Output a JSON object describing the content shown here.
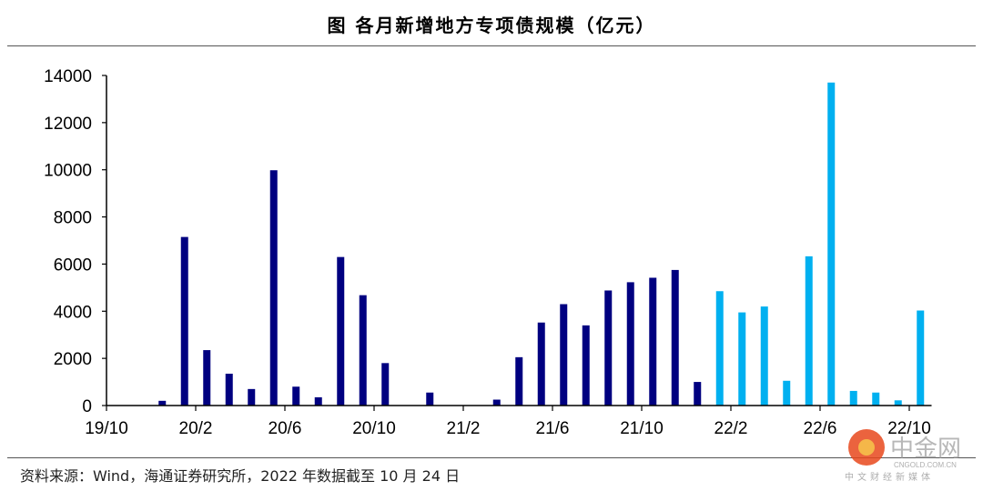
{
  "title": "图  各月新增地方专项债规模（亿元）",
  "source": "资料来源：Wind，海通证券研究所，2022 年数据截至 10 月 24 日",
  "watermark": {
    "name": "中金网",
    "url_text": "CNGOLD.COM.CN",
    "tagline": "中文财经新媒体"
  },
  "chart_data": {
    "type": "bar",
    "title": "图  各月新增地方专项债规模（亿元）",
    "xlabel": "",
    "ylabel": "",
    "ylim": [
      0,
      14000
    ],
    "yticks": [
      0,
      2000,
      4000,
      6000,
      8000,
      10000,
      12000,
      14000
    ],
    "xtick_labels": [
      "19/10",
      "20/2",
      "20/6",
      "20/10",
      "21/2",
      "21/6",
      "21/10",
      "22/2",
      "22/6",
      "22/10"
    ],
    "grid": false,
    "colors": {
      "2019-2021": "#000080",
      "2022": "#00B0F0"
    },
    "categories": [
      "19/10",
      "19/11",
      "19/12",
      "20/1",
      "20/2",
      "20/3",
      "20/4",
      "20/5",
      "20/6",
      "20/7",
      "20/8",
      "20/9",
      "20/10",
      "20/11",
      "20/12",
      "21/1",
      "21/2",
      "21/3",
      "21/4",
      "21/5",
      "21/6",
      "21/7",
      "21/8",
      "21/9",
      "21/10",
      "21/11",
      "21/12",
      "22/1",
      "22/2",
      "22/3",
      "22/4",
      "22/5",
      "22/6",
      "22/7",
      "22/8",
      "22/9",
      "22/10"
    ],
    "values": [
      0,
      0,
      200,
      7150,
      2350,
      1350,
      700,
      9980,
      800,
      350,
      6300,
      4680,
      1800,
      0,
      550,
      0,
      0,
      250,
      2050,
      3520,
      4300,
      3400,
      4880,
      5230,
      5420,
      5750,
      1000,
      4850,
      3950,
      4200,
      1050,
      6330,
      13700,
      620,
      550,
      220,
      4030
    ]
  }
}
